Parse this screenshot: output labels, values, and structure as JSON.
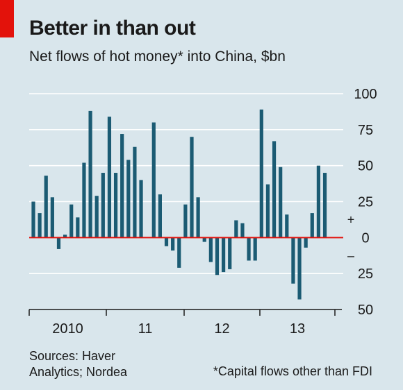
{
  "header": {
    "title": "Better in than out",
    "subtitle": "Net flows of hot money* into China, $bn"
  },
  "footer": {
    "sources_line1": "Sources: Haver",
    "sources_line2": "Analytics; Nordea",
    "footnote": "*Capital flows other than FDI"
  },
  "colors": {
    "background": "#d9e6ec",
    "bar": "#1b5b73",
    "zero_line": "#e3120b",
    "grid": "#ffffff",
    "accent_tag": "#e3120b"
  },
  "chart_data": {
    "type": "bar",
    "title": "Better in than out",
    "subtitle": "Net flows of hot money* into China, $bn",
    "ylim": [
      -50,
      100
    ],
    "y_ticks": [
      100,
      75,
      50,
      25,
      0,
      -25,
      -50
    ],
    "y_tick_labels": [
      "100",
      "75",
      "50",
      "25",
      "0",
      "25",
      "50"
    ],
    "sign_labels": [
      "+",
      "–"
    ],
    "axis_position": "right",
    "grid": true,
    "x_axis_labels": [
      "2010",
      "11",
      "12",
      "13"
    ],
    "categories": [
      "2010-01",
      "2010-02",
      "2010-03",
      "2010-04",
      "2010-05",
      "2010-06",
      "2010-07",
      "2010-08",
      "2010-09",
      "2010-10",
      "2010-11",
      "2010-12",
      "2011-01",
      "2011-02",
      "2011-03",
      "2011-04",
      "2011-05",
      "2011-06",
      "2011-07",
      "2011-08",
      "2011-09",
      "2011-10",
      "2011-11",
      "2011-12",
      "2012-01",
      "2012-02",
      "2012-03",
      "2012-04",
      "2012-05",
      "2012-06",
      "2012-07",
      "2012-08",
      "2012-09",
      "2012-10",
      "2012-11",
      "2012-12",
      "2013-01",
      "2013-02",
      "2013-03",
      "2013-04",
      "2013-05",
      "2013-06",
      "2013-07",
      "2013-08",
      "2013-09",
      "2013-10",
      "2013-11",
      "2013-12"
    ],
    "values": [
      25,
      17,
      43,
      28,
      -8,
      2,
      23,
      14,
      52,
      88,
      29,
      45,
      84,
      45,
      72,
      54,
      63,
      40,
      null,
      80,
      30,
      -6,
      -9,
      -21,
      23,
      70,
      28,
      -3,
      -17,
      -26,
      -24,
      -22,
      12,
      10,
      -16,
      -16,
      89,
      37,
      67,
      49,
      16,
      -32,
      -43,
      -7,
      17,
      50,
      45,
      null
    ]
  }
}
